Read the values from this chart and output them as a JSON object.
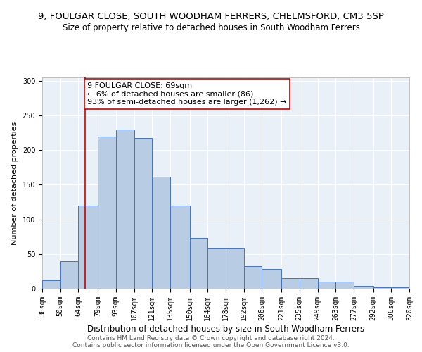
{
  "title": "9, FOULGAR CLOSE, SOUTH WOODHAM FERRERS, CHELMSFORD, CM3 5SP",
  "subtitle": "Size of property relative to detached houses in South Woodham Ferrers",
  "xlabel": "Distribution of detached houses by size in South Woodham Ferrers",
  "ylabel": "Number of detached properties",
  "bin_edges": [
    36,
    50,
    64,
    79,
    93,
    107,
    121,
    135,
    150,
    164,
    178,
    192,
    206,
    221,
    235,
    249,
    263,
    277,
    292,
    306,
    320
  ],
  "bar_heights": [
    12,
    40,
    120,
    220,
    230,
    218,
    162,
    120,
    73,
    59,
    59,
    33,
    28,
    15,
    15,
    10,
    10,
    4,
    2,
    2
  ],
  "bar_color": "#b8cce4",
  "bar_edge_color": "#4472c4",
  "vline_x": 69,
  "vline_color": "#cc0000",
  "annotation_text": "9 FOULGAR CLOSE: 69sqm\n← 6% of detached houses are smaller (86)\n93% of semi-detached houses are larger (1,262) →",
  "annotation_box_color": "#ffffff",
  "annotation_box_edge": "#cc0000",
  "ylim": [
    0,
    305
  ],
  "yticks": [
    0,
    50,
    100,
    150,
    200,
    250,
    300
  ],
  "footer1": "Contains HM Land Registry data © Crown copyright and database right 2024.",
  "footer2": "Contains public sector information licensed under the Open Government Licence v3.0.",
  "bg_color": "#eaf0f8",
  "title_fontsize": 9.5,
  "subtitle_fontsize": 8.5,
  "xlabel_fontsize": 8.5,
  "ylabel_fontsize": 8,
  "tick_fontsize": 7,
  "annotation_fontsize": 8,
  "footer_fontsize": 6.5
}
